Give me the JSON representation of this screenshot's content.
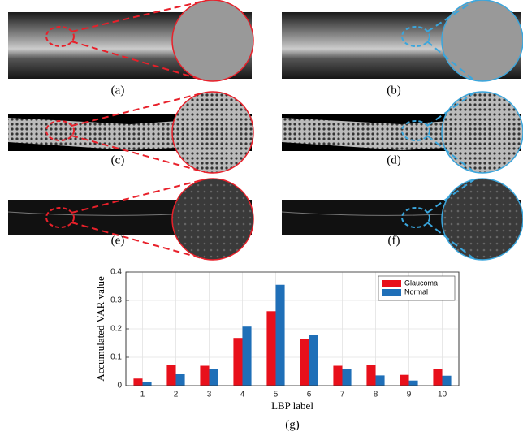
{
  "panels": [
    {
      "label": "(a)"
    },
    {
      "label": "(b)"
    },
    {
      "label": "(c)"
    },
    {
      "label": "(d)"
    },
    {
      "label": "(e)"
    },
    {
      "label": "(f)"
    }
  ],
  "chart_data": {
    "type": "bar",
    "caption": "(g)",
    "x_label": "LBP label",
    "y_label": "Accumulated VAR value",
    "categories": [
      "1",
      "2",
      "3",
      "4",
      "5",
      "6",
      "7",
      "8",
      "9",
      "10"
    ],
    "series": [
      {
        "name": "Glaucoma",
        "color": "#e8101b",
        "values": [
          0.025,
          0.073,
          0.07,
          0.168,
          0.262,
          0.163,
          0.07,
          0.073,
          0.038,
          0.06
        ]
      },
      {
        "name": "Normal",
        "color": "#1f6fb8",
        "values": [
          0.013,
          0.04,
          0.06,
          0.208,
          0.355,
          0.18,
          0.058,
          0.036,
          0.018,
          0.035
        ]
      }
    ],
    "ylim": [
      0,
      0.4
    ],
    "yticks": [
      0,
      0.1,
      0.2,
      0.3,
      0.4
    ],
    "grid": true,
    "legend": "top-right"
  }
}
